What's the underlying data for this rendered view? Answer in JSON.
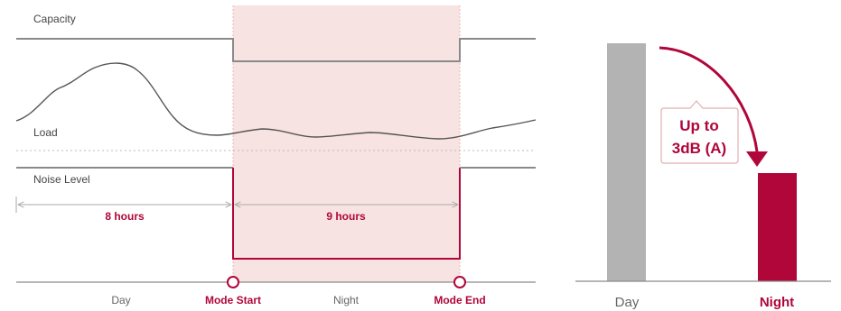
{
  "timeline": {
    "capacity_label": "Capacity",
    "load_label": "Load",
    "noise_label": "Noise Level",
    "day_duration": "8 hours",
    "night_duration": "9 hours",
    "axis": {
      "day": "Day",
      "mode_start": "Mode Start",
      "night": "Night",
      "mode_end": "Mode End"
    }
  },
  "comparison": {
    "callout_line1": "Up to",
    "callout_line2": "3dB (A)",
    "day_label": "Day",
    "night_label": "Night"
  },
  "colors": {
    "accent": "#b0063a",
    "night_band": "#f7e3e1",
    "line_gray": "#8a8a8a",
    "bar_gray": "#b3b3b3"
  }
}
